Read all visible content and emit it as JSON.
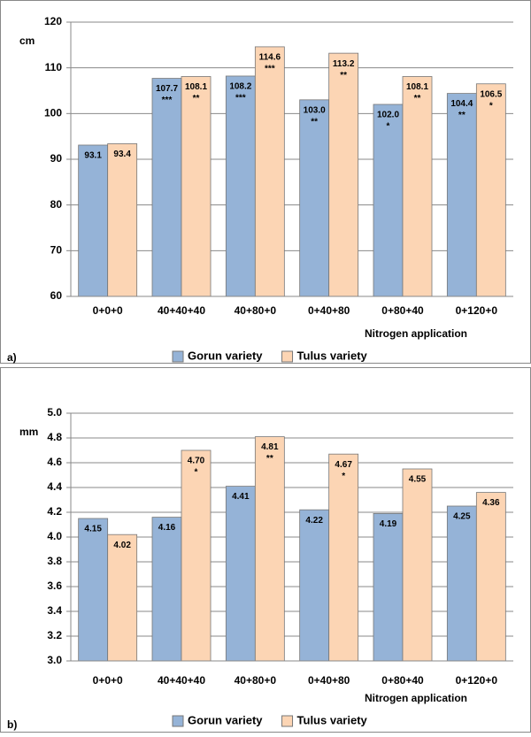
{
  "chart_data": [
    {
      "type": "bar",
      "panel_label": "a)",
      "y_label": "cm",
      "x_label": "Nitrogen application",
      "categories": [
        "0+0+0",
        "40+40+40",
        "40+80+0",
        "0+40+80",
        "0+80+40",
        "0+120+0"
      ],
      "series": [
        {
          "name": "Gorun variety",
          "color": "#95b3d7",
          "values": [
            93.1,
            107.7,
            108.2,
            103.0,
            102.0,
            104.4
          ],
          "value_labels": [
            "93.1",
            "107.7",
            "108.2",
            "103.0",
            "102.0",
            "104.4"
          ],
          "significance": [
            null,
            "***",
            "***",
            "**",
            "*",
            "**"
          ]
        },
        {
          "name": "Tulus variety",
          "color": "#fcd5b4",
          "values": [
            93.4,
            108.1,
            114.6,
            113.2,
            108.1,
            106.5
          ],
          "value_labels": [
            "93.4",
            "108.1",
            "114.6",
            "113.2",
            "108.1",
            "106.5"
          ],
          "significance": [
            null,
            "**",
            "***",
            "**",
            "**",
            "*"
          ]
        }
      ],
      "ylim": [
        60,
        120
      ],
      "yticks": [
        60,
        70,
        80,
        90,
        100,
        110,
        120
      ],
      "grid": true,
      "legend": "bottom"
    },
    {
      "type": "bar",
      "panel_label": "b)",
      "y_label": "mm",
      "x_label": "Nitrogen application",
      "categories": [
        "0+0+0",
        "40+40+40",
        "40+80+0",
        "0+40+80",
        "0+80+40",
        "0+120+0"
      ],
      "series": [
        {
          "name": "Gorun variety",
          "color": "#95b3d7",
          "values": [
            4.15,
            4.16,
            4.41,
            4.22,
            4.19,
            4.25
          ],
          "value_labels": [
            "4.15",
            "4.16",
            "4.41",
            "4.22",
            "4.19",
            "4.25"
          ],
          "significance": [
            null,
            null,
            null,
            null,
            null,
            null
          ]
        },
        {
          "name": "Tulus variety",
          "color": "#fcd5b4",
          "values": [
            4.02,
            4.7,
            4.81,
            4.67,
            4.55,
            4.36
          ],
          "value_labels": [
            "4.02",
            "4.70",
            "4.81",
            "4.67",
            "4.55",
            "4.36"
          ],
          "significance": [
            null,
            "*",
            "**",
            "*",
            null,
            null
          ]
        }
      ],
      "ylim": [
        3.0,
        5.0
      ],
      "yticks": [
        {
          "value": 3.0,
          "label": "3.0"
        },
        {
          "value": 3.2,
          "label": "3.2"
        },
        {
          "value": 3.4,
          "label": "3.4"
        },
        {
          "value": 3.6,
          "label": "3.6"
        },
        {
          "value": 3.8,
          "label": "3.8"
        },
        {
          "value": 4.0,
          "label": "4.0"
        },
        {
          "value": 4.2,
          "label": "4.2"
        },
        {
          "value": 4.4,
          "label": "4.4"
        },
        {
          "value": 4.6,
          "label": "4.6"
        },
        {
          "value": 4.8,
          "label": "4.8"
        },
        {
          "value": 5.0,
          "label": "5.0"
        }
      ],
      "grid": true,
      "legend": "bottom"
    }
  ]
}
